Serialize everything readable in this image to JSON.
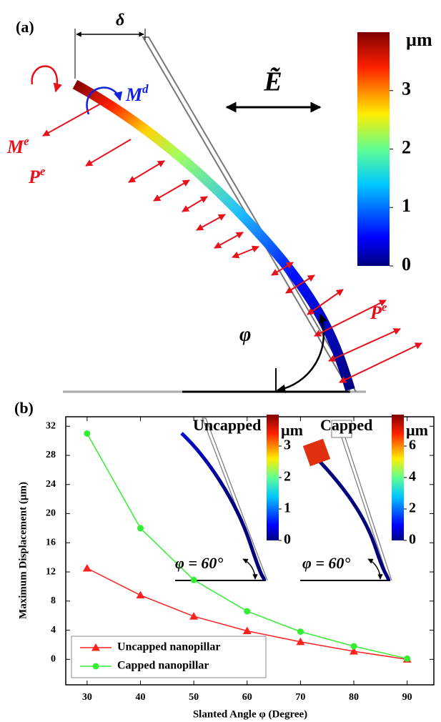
{
  "panel_a": {
    "label": "(a)",
    "delta": "δ",
    "field": "Ẽ",
    "moment_e": {
      "base": "M",
      "sup": "e"
    },
    "moment_d": {
      "base": "M",
      "sup": "d"
    },
    "polarization": [
      {
        "base": "P",
        "sup": "e"
      },
      {
        "base": "P",
        "sup": "e"
      }
    ],
    "angle": "φ",
    "colorbar": {
      "unit": "µm",
      "lim": [
        0,
        4
      ],
      "ticks": [
        0,
        1,
        2,
        3
      ]
    }
  },
  "chart_data": {
    "type": "line",
    "panel_label": "(b)",
    "x": [
      30,
      40,
      50,
      60,
      70,
      80,
      90
    ],
    "series": [
      {
        "name": "Uncapped nanopillar",
        "color": "#ff2020",
        "marker": "triangle",
        "values": [
          12.5,
          8.8,
          5.9,
          3.9,
          2.4,
          1.1,
          0
        ]
      },
      {
        "name": "Capped nanopillar",
        "color": "#33ee33",
        "marker": "circle",
        "values": [
          31,
          18,
          10.9,
          6.6,
          3.8,
          1.8,
          0.1
        ]
      }
    ],
    "xlim": [
      26,
      95
    ],
    "xticks": [
      30,
      40,
      50,
      60,
      70,
      80,
      90
    ],
    "ylim": [
      -3.5,
      33.3
    ],
    "yticks": [
      0,
      4,
      8,
      12,
      16,
      20,
      24,
      28,
      32
    ],
    "xlabel": "Slanted Angle φ (Degree)",
    "ylabel": "Maximum Displacement (µm)",
    "legend": "lower left",
    "insets": [
      {
        "title": "Uncapped",
        "unit": "µm",
        "lim": [
          0,
          4
        ],
        "ticks": [
          0,
          1,
          2,
          3
        ],
        "angle_label": "φ = 60°"
      },
      {
        "title": "Capped",
        "unit": "µm",
        "lim": [
          0,
          8
        ],
        "ticks": [
          0,
          2,
          4,
          6
        ],
        "angle_label": "φ = 60°"
      }
    ]
  }
}
